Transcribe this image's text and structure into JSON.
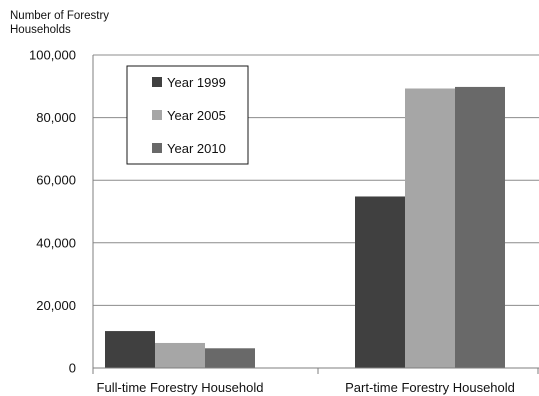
{
  "chart_data": {
    "type": "bar",
    "ylabel": "Number of Forestry\nHouseholds",
    "xlabel": "",
    "title": "",
    "categories": [
      "Full-time Forestry Household",
      "Part-time Forestry Household"
    ],
    "series": [
      {
        "name": "Year 1999",
        "values": [
          11800,
          54800
        ],
        "color": "#404040"
      },
      {
        "name": "Year 2005",
        "values": [
          8000,
          89300
        ],
        "color": "#a6a6a6"
      },
      {
        "name": "Year 2010",
        "values": [
          6300,
          89800
        ],
        "color": "#696969"
      }
    ],
    "ylim": [
      0,
      100000
    ],
    "yticks": [
      0,
      20000,
      40000,
      60000,
      80000,
      100000
    ],
    "ytick_labels": [
      "0",
      "20,000",
      "40,000",
      "60,000",
      "80,000",
      "100,000"
    ],
    "grid": true,
    "legend_position": "top-left-inside"
  }
}
